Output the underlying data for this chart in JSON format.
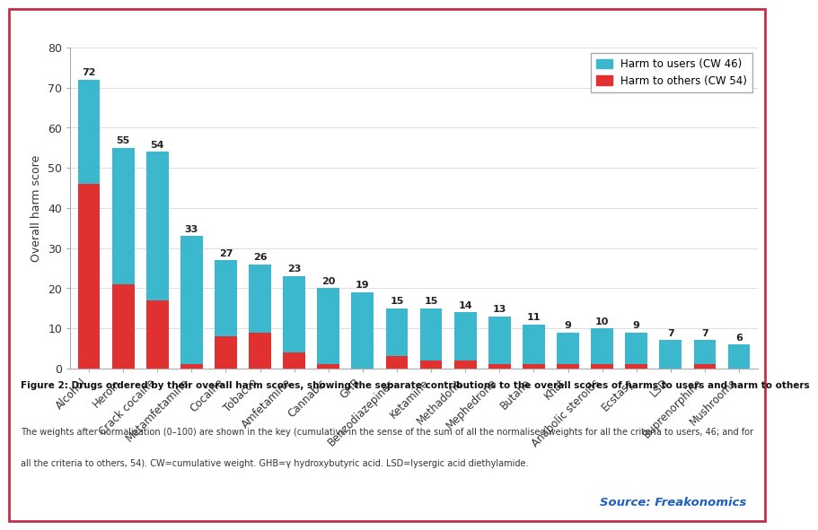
{
  "categories": [
    "Alcohol",
    "Heroin",
    "Crack cocaine",
    "Metamfetamine",
    "Cocaine",
    "Tobacco",
    "Amfetamine",
    "Cannabis",
    "GHB",
    "Benzodiazepines",
    "Ketamine",
    "Methadone",
    "Mephedrone",
    "Butane",
    "Khat",
    "Anabolic steroids",
    "Ecstasy",
    "LSD",
    "Buprenorphine",
    "Mushrooms"
  ],
  "totals": [
    72,
    55,
    54,
    33,
    27,
    26,
    23,
    20,
    19,
    15,
    15,
    14,
    13,
    11,
    9,
    10,
    9,
    7,
    7,
    6
  ],
  "harm_to_others": [
    46,
    21,
    17,
    1,
    8,
    9,
    4,
    1,
    0,
    3,
    2,
    2,
    1,
    1,
    1,
    1,
    1,
    0,
    1,
    0
  ],
  "color_users": "#3CB8CE",
  "color_others": "#E03030",
  "ylabel": "Overall harm score",
  "ylim": [
    0,
    80
  ],
  "yticks": [
    0,
    10,
    20,
    30,
    40,
    50,
    60,
    70,
    80
  ],
  "legend_users": "Harm to users (CW 46)",
  "legend_others": "Harm to others (CW 54)",
  "caption_bold": "Figure 2: Drugs ordered by their overall harm scores, showing the separate contributions to the overall scores of harms to users and harm to others",
  "caption_line2": "The weights after normalisation (0–100) are shown in the key (cumulative in the sense of the sum of all the normalised weights for all the criteria to users, 46; and for",
  "caption_line3": "all the criteria to others, 54). CW=cumulative weight. GHB=γ hydroxybutyric acid. LSD=lysergic acid diethylamide.",
  "source_text": "Source: Freakonomics",
  "source_color": "#1B5FBF",
  "border_color": "#C0304A",
  "bg_color": "#FFFFFF",
  "label_fontsize": 8.0,
  "axis_fontsize": 8.5
}
